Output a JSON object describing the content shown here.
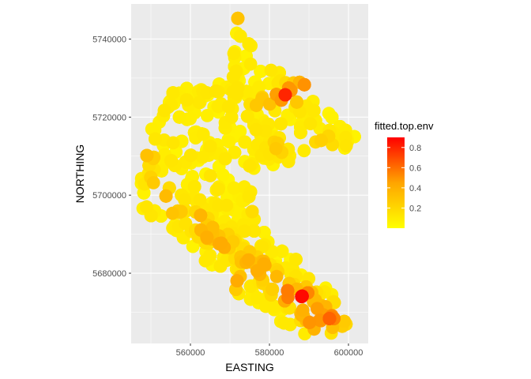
{
  "chart_data": {
    "type": "scatter",
    "title": "",
    "xlabel": "EASTING",
    "ylabel": "NORTHING",
    "xlim": [
      545000,
      605000
    ],
    "ylim": [
      5662000,
      5749000
    ],
    "xticks": [
      560000,
      580000,
      600000
    ],
    "xtick_labels": [
      "560000",
      "580000",
      "600000"
    ],
    "yticks": [
      5680000,
      5700000,
      5720000,
      5740000
    ],
    "ytick_labels": [
      "5680000",
      "5700000",
      "5720000",
      "5740000"
    ],
    "grid": true,
    "panel_background": "#ebebeb",
    "gridline_color": "#ffffff",
    "color_variable": "fitted.top.env",
    "color_scale": {
      "low": "#ffff00",
      "high": "#ff0000",
      "min": 0.0,
      "max": 0.9
    },
    "legend": {
      "title": "fitted.top.env",
      "ticks": [
        0.2,
        0.4,
        0.6,
        0.8
      ],
      "tick_labels": [
        "0.2",
        "0.4",
        "0.6",
        "0.8"
      ],
      "placement": "right"
    },
    "region_outline": [
      [
        571500,
        5745500
      ],
      [
        574500,
        5744500
      ],
      [
        575500,
        5738000
      ],
      [
        574000,
        5734000
      ],
      [
        578000,
        5733000
      ],
      [
        582500,
        5733000
      ],
      [
        587000,
        5730000
      ],
      [
        590000,
        5728000
      ],
      [
        592500,
        5724000
      ],
      [
        595500,
        5721000
      ],
      [
        600000,
        5718000
      ],
      [
        603000,
        5714500
      ],
      [
        599000,
        5711500
      ],
      [
        592000,
        5713000
      ],
      [
        586500,
        5710000
      ],
      [
        582500,
        5705000
      ],
      [
        578000,
        5702000
      ],
      [
        575000,
        5699000
      ],
      [
        576000,
        5695000
      ],
      [
        580000,
        5690000
      ],
      [
        585000,
        5685000
      ],
      [
        591000,
        5680000
      ],
      [
        596000,
        5675000
      ],
      [
        599000,
        5670000
      ],
      [
        600000,
        5666500
      ],
      [
        595000,
        5664000
      ],
      [
        588000,
        5664500
      ],
      [
        582000,
        5668000
      ],
      [
        576000,
        5671000
      ],
      [
        570000,
        5677000
      ],
      [
        564000,
        5683000
      ],
      [
        558000,
        5688000
      ],
      [
        553000,
        5691000
      ],
      [
        549000,
        5693500
      ],
      [
        547500,
        5697500
      ],
      [
        547000,
        5703500
      ],
      [
        548000,
        5710000
      ],
      [
        549500,
        5716500
      ],
      [
        552000,
        5722000
      ],
      [
        555000,
        5727000
      ],
      [
        561000,
        5729000
      ],
      [
        568000,
        5729000
      ],
      [
        571000,
        5734000
      ],
      [
        570500,
        5740000
      ]
    ],
    "hotspots": [
      {
        "x": 588500,
        "y": 5673500,
        "value": 0.88
      },
      {
        "x": 590500,
        "y": 5670000,
        "value": 0.72
      },
      {
        "x": 585000,
        "y": 5674500,
        "value": 0.65
      },
      {
        "x": 595000,
        "y": 5670000,
        "value": 0.6
      },
      {
        "x": 596000,
        "y": 5668000,
        "value": 0.65
      },
      {
        "x": 583000,
        "y": 5676000,
        "value": 0.5
      },
      {
        "x": 591500,
        "y": 5667500,
        "value": 0.55
      },
      {
        "x": 580500,
        "y": 5678500,
        "value": 0.45
      },
      {
        "x": 577000,
        "y": 5681500,
        "value": 0.55
      },
      {
        "x": 574000,
        "y": 5683500,
        "value": 0.45
      },
      {
        "x": 568000,
        "y": 5688000,
        "value": 0.55
      },
      {
        "x": 564500,
        "y": 5690500,
        "value": 0.5
      },
      {
        "x": 562000,
        "y": 5693500,
        "value": 0.45
      },
      {
        "x": 556000,
        "y": 5697000,
        "value": 0.4
      },
      {
        "x": 553000,
        "y": 5700000,
        "value": 0.35
      },
      {
        "x": 551000,
        "y": 5704000,
        "value": 0.3
      },
      {
        "x": 584000,
        "y": 5725500,
        "value": 0.75
      },
      {
        "x": 586500,
        "y": 5726500,
        "value": 0.65
      },
      {
        "x": 581000,
        "y": 5725000,
        "value": 0.5
      },
      {
        "x": 589000,
        "y": 5728000,
        "value": 0.55
      },
      {
        "x": 578000,
        "y": 5724000,
        "value": 0.35
      },
      {
        "x": 573000,
        "y": 5745000,
        "value": 0.4
      },
      {
        "x": 594000,
        "y": 5713500,
        "value": 0.3
      },
      {
        "x": 549000,
        "y": 5710000,
        "value": 0.35
      },
      {
        "x": 561000,
        "y": 5682000,
        "value": 0.35
      },
      {
        "x": 571000,
        "y": 5678000,
        "value": 0.45
      },
      {
        "x": 566000,
        "y": 5716000,
        "value": 0.25
      },
      {
        "x": 582000,
        "y": 5712000,
        "value": 0.3
      },
      {
        "x": 576000,
        "y": 5697000,
        "value": 0.25
      }
    ]
  }
}
